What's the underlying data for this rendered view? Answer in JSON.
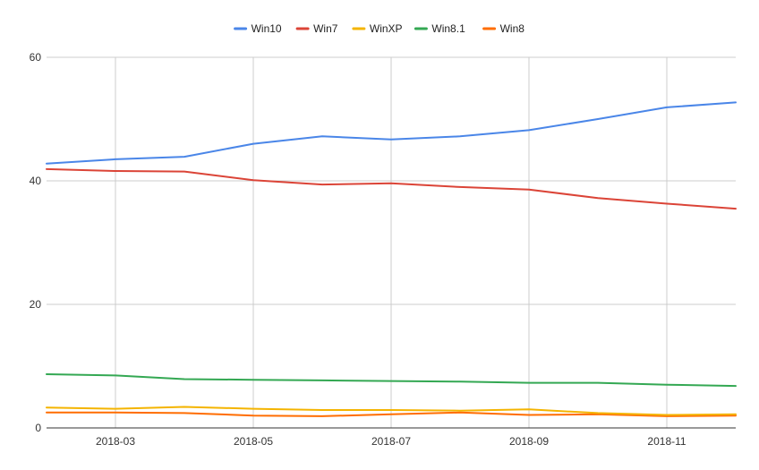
{
  "chart_data": {
    "type": "line",
    "title": "",
    "xlabel": "",
    "ylabel": "",
    "ylim": [
      0,
      60
    ],
    "yticks": [
      "0",
      "20",
      "40",
      "60"
    ],
    "x": [
      "2018-02",
      "2018-03",
      "2018-04",
      "2018-05",
      "2018-06",
      "2018-07",
      "2018-08",
      "2018-09",
      "2018-10",
      "2018-11",
      "2018-12"
    ],
    "xtick_labels": [
      "2018-03",
      "2018-05",
      "2018-07",
      "2018-09",
      "2018-11"
    ],
    "grid": true,
    "legend_position": "top",
    "series": [
      {
        "name": "Win10",
        "color": "#4a86e8",
        "values": [
          42.8,
          43.5,
          43.9,
          46.0,
          47.2,
          46.7,
          47.2,
          48.2,
          50.0,
          51.9,
          52.7
        ]
      },
      {
        "name": "Win7",
        "color": "#db4437",
        "values": [
          41.9,
          41.6,
          41.5,
          40.1,
          39.4,
          39.6,
          39.0,
          38.6,
          37.2,
          36.3,
          35.5
        ]
      },
      {
        "name": "WinXP",
        "color": "#f4b400",
        "values": [
          3.3,
          3.1,
          3.4,
          3.1,
          2.9,
          2.9,
          2.8,
          3.0,
          2.4,
          2.1,
          2.2
        ]
      },
      {
        "name": "Win8.1",
        "color": "#34a853",
        "values": [
          8.7,
          8.5,
          7.9,
          7.8,
          7.7,
          7.6,
          7.5,
          7.3,
          7.3,
          7.0,
          6.8
        ]
      },
      {
        "name": "Win8",
        "color": "#ff6d01",
        "values": [
          2.5,
          2.5,
          2.4,
          2.0,
          1.9,
          2.2,
          2.5,
          2.1,
          2.2,
          1.9,
          2.0
        ]
      }
    ]
  }
}
